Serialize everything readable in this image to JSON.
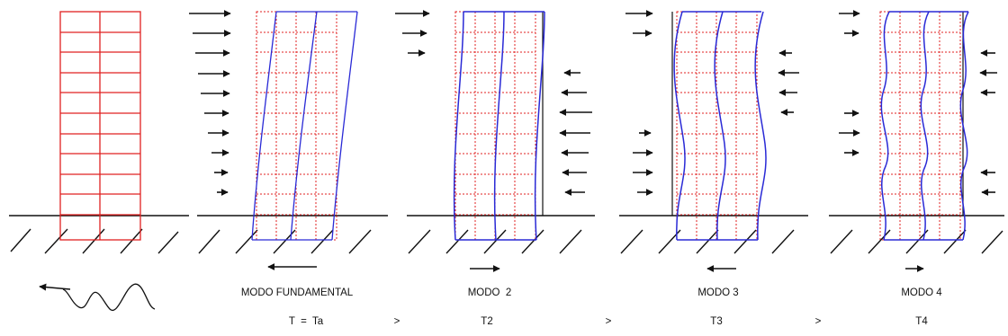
{
  "labels": {
    "mode_fundamental": "MODO FUNDAMENTAL",
    "mode_2": "MODO  2",
    "mode_3": "MODO 3",
    "mode_4": "MODO 4"
  },
  "periods": {
    "t1": "T  =  Ta",
    "t2": "T2",
    "t3": "T3",
    "t4": "T4",
    "gt": ">"
  },
  "colors": {
    "grid_red": "#e02020",
    "mode_blue": "#2a2ad6",
    "ink": "#111111"
  },
  "icons": [
    "ground-hatch-icon",
    "force-arrow-icon",
    "seismic-wave-icon",
    "displacement-arrow-icon"
  ]
}
